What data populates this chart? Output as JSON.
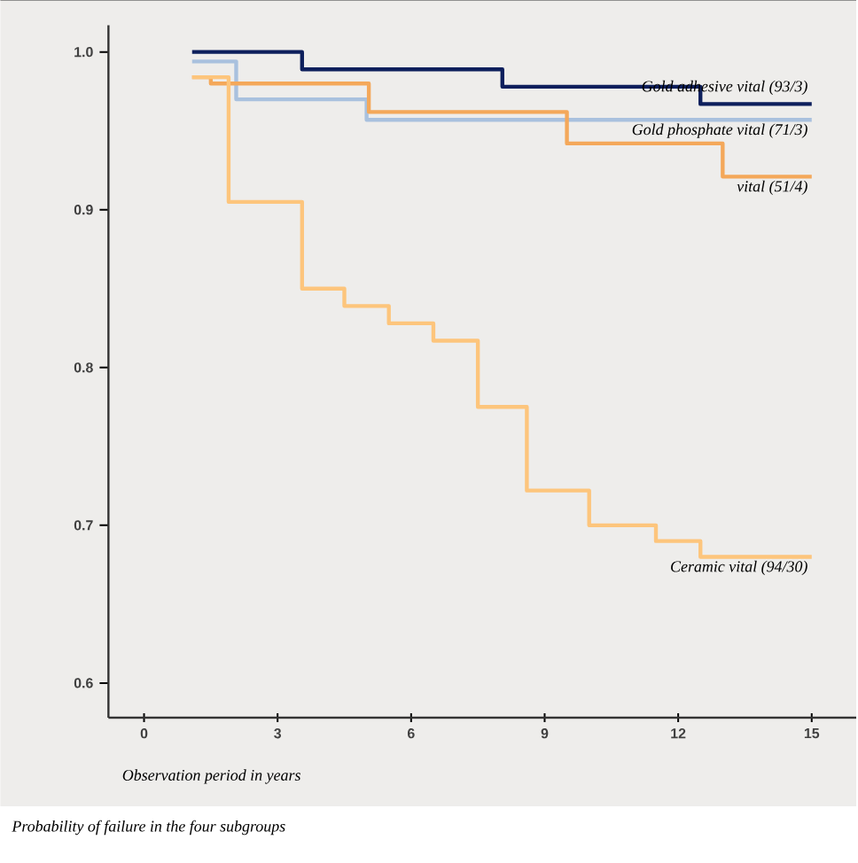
{
  "chart_data": {
    "type": "step",
    "xlabel": "Observation period in years",
    "annotations": [
      "Probability of failure in the four subgroups"
    ],
    "xlim": [
      -0.8,
      16
    ],
    "ylim": [
      0.578,
      1.017
    ],
    "xticks": [
      0,
      3,
      6,
      9,
      12,
      15
    ],
    "yticks": [
      {
        "value": 0.6,
        "label": "0.6"
      },
      {
        "value": 0.7,
        "label": "0.7"
      },
      {
        "value": 0.8,
        "label": "0.8"
      },
      {
        "value": 0.9,
        "label": "0.9"
      },
      {
        "value": 1.0,
        "label": "1.0"
      }
    ],
    "series": [
      {
        "name": "Gold adhesive vital (93/3)",
        "color": "#0d1f5c",
        "x": [
          1.08,
          3.55,
          8.05,
          12.5,
          15
        ],
        "values": [
          1.0,
          0.989,
          0.978,
          0.967,
          0.967
        ]
      },
      {
        "name": "Gold phosphate vital (71/3)",
        "color": "#a9c1de",
        "x": [
          1.08,
          2.07,
          5.0,
          15
        ],
        "values": [
          0.994,
          0.97,
          0.957,
          0.957
        ]
      },
      {
        "name": "vital (51/4)",
        "color": "#f4a85a",
        "x": [
          1.08,
          1.5,
          5.05,
          9.5,
          13.0,
          15
        ],
        "values": [
          0.984,
          0.98,
          0.962,
          0.942,
          0.921,
          0.921
        ]
      },
      {
        "name": "Ceramic vital (94/30)",
        "color": "#fdc57c",
        "x": [
          1.08,
          1.9,
          3.55,
          4.5,
          5.5,
          6.5,
          7.5,
          8.6,
          10.0,
          11.5,
          12.5,
          15
        ],
        "values": [
          0.984,
          0.905,
          0.85,
          0.839,
          0.828,
          0.817,
          0.775,
          0.722,
          0.7,
          0.69,
          0.68,
          0.68
        ]
      }
    ]
  }
}
